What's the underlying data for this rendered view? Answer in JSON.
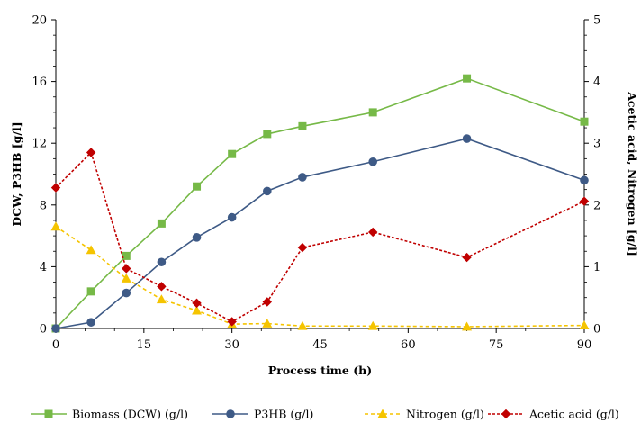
{
  "chart_data": {
    "type": "line",
    "title": "",
    "xlabel": "Process time (h)",
    "ylabel_left": "DCW, P3HB [g/l]",
    "ylabel_right": "Acetic acid, Nitrogen [g/l]",
    "xlim": [
      0,
      90
    ],
    "xticks": [
      0,
      15,
      30,
      45,
      60,
      75,
      90
    ],
    "ylim_left": [
      0,
      20
    ],
    "yticks_left": [
      0,
      4,
      8,
      12,
      16,
      20
    ],
    "ylim_right": [
      0,
      5
    ],
    "yticks_right": [
      0,
      1,
      2,
      3,
      4,
      5
    ],
    "grid": false,
    "legend_position": "bottom",
    "series": [
      {
        "name": "Biomass (DCW) (g/l)",
        "axis": "left",
        "color": "#76b947",
        "marker": "square",
        "dash": "solid",
        "x": [
          0,
          6,
          12,
          18,
          24,
          30,
          36,
          42,
          54,
          70,
          90
        ],
        "y": [
          0.0,
          2.4,
          4.7,
          6.8,
          9.2,
          11.3,
          12.6,
          13.1,
          14.0,
          16.2,
          13.4
        ]
      },
      {
        "name": "P3HB (g/l)",
        "axis": "left",
        "color": "#3e5a86",
        "marker": "circle",
        "dash": "solid",
        "x": [
          0,
          6,
          12,
          18,
          24,
          30,
          36,
          42,
          54,
          70,
          90
        ],
        "y": [
          0.0,
          0.4,
          2.3,
          4.3,
          5.9,
          7.2,
          8.9,
          9.8,
          10.8,
          12.3,
          9.6
        ]
      },
      {
        "name": "Nitrogen (g/l)",
        "axis": "right",
        "color": "#f5c400",
        "marker": "triangle",
        "dash": "dashed",
        "x": [
          0,
          6,
          12,
          18,
          24,
          30,
          36,
          42,
          54,
          70,
          90
        ],
        "y": [
          1.65,
          1.27,
          0.81,
          0.47,
          0.29,
          0.07,
          0.08,
          0.04,
          0.04,
          0.03,
          0.05
        ]
      },
      {
        "name": "Acetic acid (g/l)",
        "axis": "right",
        "color": "#c00000",
        "marker": "diamond",
        "dash": "dotted",
        "x": [
          0,
          6,
          12,
          18,
          24,
          30,
          36,
          42,
          54,
          70,
          90
        ],
        "y": [
          2.28,
          2.85,
          0.97,
          0.68,
          0.41,
          0.11,
          0.43,
          1.31,
          1.56,
          1.15,
          2.06
        ]
      }
    ]
  }
}
